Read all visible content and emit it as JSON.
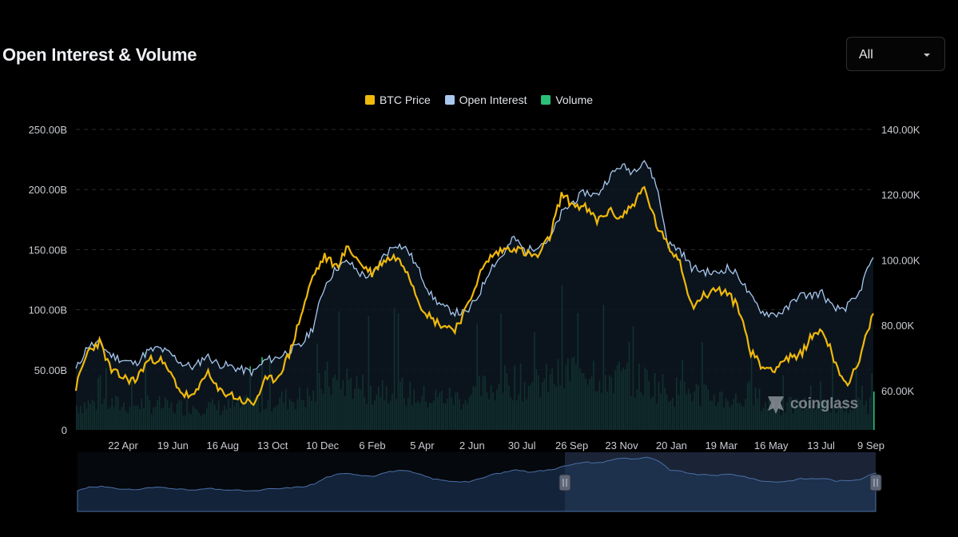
{
  "header": {
    "title": "Open Interest & Volume"
  },
  "range_select": {
    "value": "All",
    "icon": "chevron-down-icon"
  },
  "watermark": {
    "text": "coinglass",
    "icon": "coinglass-logo-icon"
  },
  "colors": {
    "btc": "#f0b90b",
    "oi": "#a8c8f0",
    "volume": "#2bbf78",
    "background": "#000000",
    "grid": "#2a2d33"
  },
  "chart_data": {
    "type": "line",
    "title": "Open Interest & Volume",
    "legend": [
      "BTC Price",
      "Open Interest",
      "Volume"
    ],
    "legend_position": "top-center",
    "grid": true,
    "x_ticks": [
      "22 Apr",
      "19 Jun",
      "16 Aug",
      "13 Oct",
      "10 Dec",
      "6 Feb",
      "5 Apr",
      "2 Jun",
      "30 Jul",
      "26 Sep",
      "23 Nov",
      "20 Jan",
      "19 Mar",
      "16 May",
      "13 Jul",
      "9 Sep"
    ],
    "y_left": {
      "label": "",
      "ticks": [
        "0",
        "50.00B",
        "100.00B",
        "150.00B",
        "200.00B",
        "250.00B"
      ],
      "range": [
        0,
        250
      ]
    },
    "y_right": {
      "label": "",
      "ticks": [
        "60.00K",
        "80.00K",
        "100.00K",
        "120.00K",
        "140.00K"
      ],
      "range": [
        48,
        140
      ]
    },
    "x_index_range": [
      0,
      202
    ],
    "series": [
      {
        "name": "Open Interest",
        "axis": "left",
        "unit": "B",
        "type": "area",
        "points": [
          [
            0,
            50
          ],
          [
            3,
            70
          ],
          [
            6,
            72
          ],
          [
            9,
            62
          ],
          [
            12,
            58
          ],
          [
            15,
            55
          ],
          [
            18,
            65
          ],
          [
            21,
            68
          ],
          [
            24,
            63
          ],
          [
            27,
            55
          ],
          [
            30,
            52
          ],
          [
            33,
            62
          ],
          [
            36,
            55
          ],
          [
            39,
            53
          ],
          [
            42,
            50
          ],
          [
            45,
            48
          ],
          [
            48,
            58
          ],
          [
            51,
            60
          ],
          [
            54,
            66
          ],
          [
            57,
            70
          ],
          [
            60,
            85
          ],
          [
            63,
            120
          ],
          [
            66,
            135
          ],
          [
            69,
            140
          ],
          [
            72,
            130
          ],
          [
            75,
            127
          ],
          [
            78,
            145
          ],
          [
            81,
            155
          ],
          [
            84,
            150
          ],
          [
            87,
            132
          ],
          [
            90,
            112
          ],
          [
            93,
            102
          ],
          [
            96,
            98
          ],
          [
            99,
            97
          ],
          [
            102,
            112
          ],
          [
            105,
            135
          ],
          [
            108,
            145
          ],
          [
            111,
            160
          ],
          [
            114,
            148
          ],
          [
            117,
            154
          ],
          [
            120,
            158
          ],
          [
            123,
            180
          ],
          [
            126,
            190
          ],
          [
            129,
            198
          ],
          [
            132,
            195
          ],
          [
            135,
            210
          ],
          [
            138,
            220
          ],
          [
            141,
            215
          ],
          [
            144,
            225
          ],
          [
            147,
            205
          ],
          [
            150,
            155
          ],
          [
            153,
            150
          ],
          [
            156,
            135
          ],
          [
            159,
            132
          ],
          [
            162,
            130
          ],
          [
            165,
            135
          ],
          [
            168,
            128
          ],
          [
            171,
            110
          ],
          [
            174,
            98
          ],
          [
            177,
            96
          ],
          [
            180,
            100
          ],
          [
            183,
            112
          ],
          [
            186,
            112
          ],
          [
            189,
            114
          ],
          [
            192,
            100
          ],
          [
            195,
            102
          ],
          [
            198,
            110
          ],
          [
            201,
            138
          ],
          [
            202,
            140
          ]
        ]
      },
      {
        "name": "BTC Price",
        "axis": "right",
        "unit": "K",
        "type": "line",
        "points": [
          [
            0,
            61
          ],
          [
            3,
            72
          ],
          [
            6,
            75
          ],
          [
            9,
            66
          ],
          [
            12,
            64
          ],
          [
            15,
            63
          ],
          [
            18,
            69
          ],
          [
            21,
            70
          ],
          [
            24,
            65
          ],
          [
            27,
            59
          ],
          [
            30,
            58
          ],
          [
            33,
            66
          ],
          [
            36,
            60
          ],
          [
            39,
            59
          ],
          [
            42,
            57
          ],
          [
            45,
            56
          ],
          [
            48,
            63
          ],
          [
            51,
            64
          ],
          [
            54,
            71
          ],
          [
            57,
            83
          ],
          [
            60,
            95
          ],
          [
            63,
            101
          ],
          [
            66,
            98
          ],
          [
            69,
            104
          ],
          [
            72,
            99
          ],
          [
            75,
            96
          ],
          [
            78,
            100
          ],
          [
            81,
            101
          ],
          [
            84,
            97
          ],
          [
            87,
            87
          ],
          [
            90,
            82
          ],
          [
            93,
            80
          ],
          [
            96,
            79
          ],
          [
            99,
            85
          ],
          [
            102,
            95
          ],
          [
            105,
            101
          ],
          [
            108,
            103
          ],
          [
            111,
            104
          ],
          [
            114,
            102
          ],
          [
            117,
            101
          ],
          [
            120,
            107
          ],
          [
            123,
            120
          ],
          [
            126,
            117
          ],
          [
            129,
            116
          ],
          [
            132,
            112
          ],
          [
            135,
            115
          ],
          [
            138,
            113
          ],
          [
            141,
            117
          ],
          [
            144,
            122
          ],
          [
            147,
            111
          ],
          [
            150,
            104
          ],
          [
            153,
            100
          ],
          [
            156,
            86
          ],
          [
            159,
            89
          ],
          [
            162,
            91
          ],
          [
            165,
            90
          ],
          [
            168,
            85
          ],
          [
            171,
            72
          ],
          [
            174,
            67
          ],
          [
            177,
            67
          ],
          [
            180,
            70
          ],
          [
            183,
            70
          ],
          [
            186,
            76
          ],
          [
            189,
            79
          ],
          [
            192,
            70
          ],
          [
            195,
            62
          ],
          [
            198,
            67
          ],
          [
            201,
            80
          ],
          [
            202,
            83
          ]
        ]
      },
      {
        "name": "Volume",
        "axis": "left",
        "unit": "B",
        "type": "bar",
        "points": [
          [
            0,
            22
          ],
          [
            6,
            25
          ],
          [
            12,
            22
          ],
          [
            18,
            24
          ],
          [
            24,
            20
          ],
          [
            30,
            22
          ],
          [
            36,
            20
          ],
          [
            42,
            22
          ],
          [
            48,
            26
          ],
          [
            54,
            28
          ],
          [
            60,
            30
          ],
          [
            63,
            45
          ],
          [
            66,
            42
          ],
          [
            69,
            44
          ],
          [
            72,
            38
          ],
          [
            75,
            36
          ],
          [
            78,
            40
          ],
          [
            81,
            38
          ],
          [
            84,
            32
          ],
          [
            87,
            30
          ],
          [
            90,
            28
          ],
          [
            93,
            30
          ],
          [
            96,
            29
          ],
          [
            99,
            28
          ],
          [
            102,
            36
          ],
          [
            105,
            38
          ],
          [
            108,
            42
          ],
          [
            111,
            45
          ],
          [
            114,
            40
          ],
          [
            117,
            42
          ],
          [
            120,
            44
          ],
          [
            123,
            48
          ],
          [
            126,
            55
          ],
          [
            129,
            58
          ],
          [
            132,
            52
          ],
          [
            135,
            48
          ],
          [
            138,
            47
          ],
          [
            141,
            45
          ],
          [
            144,
            44
          ],
          [
            147,
            40
          ],
          [
            150,
            36
          ],
          [
            153,
            34
          ],
          [
            156,
            35
          ],
          [
            159,
            30
          ],
          [
            162,
            30
          ],
          [
            165,
            28
          ],
          [
            168,
            26
          ],
          [
            171,
            34
          ],
          [
            174,
            24
          ],
          [
            177,
            22
          ],
          [
            180,
            21
          ],
          [
            183,
            22
          ],
          [
            186,
            23
          ],
          [
            189,
            24
          ],
          [
            192,
            22
          ],
          [
            195,
            21
          ],
          [
            198,
            22
          ],
          [
            201,
            24
          ],
          [
            202,
            26
          ]
        ]
      }
    ]
  }
}
